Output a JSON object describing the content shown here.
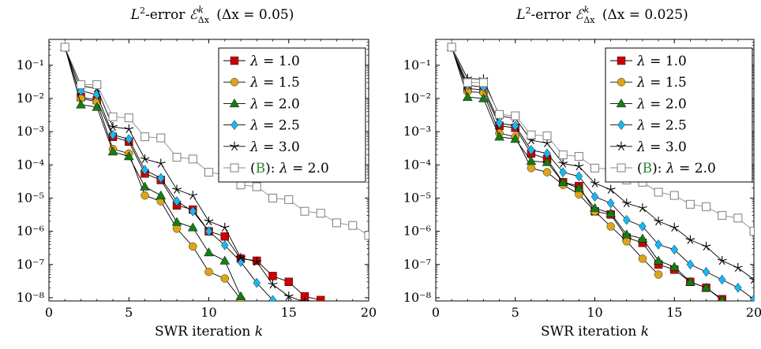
{
  "chart_data": [
    {
      "type": "line",
      "title": "L²-error 𝓔ᵏ_Δx (Δx = 0.05)",
      "xlabel": "SWR iteration k",
      "ylabel": "",
      "xlim": [
        0,
        20
      ],
      "ylim": [
        8e-09,
        0.6
      ],
      "yscale": "log",
      "grid": false,
      "legend_position": "top-right",
      "xticks": [
        "0",
        "5",
        "10",
        "15",
        "20"
      ],
      "yticks": [
        "10⁻⁸",
        "10⁻⁷",
        "10⁻⁶",
        "10⁻⁵",
        "10⁻⁴",
        "10⁻³",
        "10⁻²",
        "10⁻¹"
      ],
      "series": [
        {
          "name": "λ = 1.0",
          "color": "#cc0000",
          "marker": "square",
          "x": [
            1,
            2,
            3,
            4,
            5,
            6,
            7,
            8,
            9,
            10,
            11,
            12,
            13,
            14,
            15,
            16,
            17
          ],
          "y": [
            0.35,
            0.011,
            0.009,
            0.0007,
            0.0005,
            5.5e-05,
            3.5e-05,
            6e-06,
            4.5e-06,
            1e-06,
            7e-07,
            1.5e-07,
            1.3e-07,
            4.5e-08,
            3e-08,
            1.1e-08,
            8.5e-09
          ]
        },
        {
          "name": "λ = 1.5",
          "color": "#dca419",
          "marker": "circle",
          "x": [
            1,
            2,
            3,
            4,
            5,
            6,
            7,
            8,
            9,
            10,
            11,
            12
          ],
          "y": [
            0.35,
            0.01,
            0.008,
            0.0003,
            0.00022,
            1.2e-05,
            8e-06,
            1.2e-06,
            3.5e-07,
            6e-08,
            3.8e-08,
            9e-09
          ]
        },
        {
          "name": "λ = 2.0",
          "color": "#137d13",
          "marker": "triangle",
          "x": [
            1,
            2,
            3,
            4,
            5,
            6,
            7,
            8,
            9,
            10,
            11,
            12
          ],
          "y": [
            0.35,
            0.0065,
            0.0055,
            0.00025,
            0.00018,
            2.2e-05,
            1.2e-05,
            1.9e-06,
            1.3e-06,
            2.3e-07,
            1.3e-07,
            1.1e-08
          ]
        },
        {
          "name": "λ = 2.5",
          "color": "#15b8f0",
          "marker": "diamond",
          "x": [
            1,
            2,
            3,
            4,
            5,
            6,
            7,
            8,
            9,
            10,
            11,
            12,
            13,
            14
          ],
          "y": [
            0.35,
            0.017,
            0.013,
            0.0008,
            0.0006,
            7e-05,
            4e-05,
            8e-06,
            4e-06,
            1e-06,
            3.8e-07,
            1.2e-07,
            2.8e-08,
            8.5e-09
          ]
        },
        {
          "name": "λ = 3.0",
          "color": "#000000",
          "marker": "star",
          "x": [
            1,
            2,
            3,
            4,
            5,
            6,
            7,
            8,
            9,
            10,
            11,
            12,
            13,
            14,
            15,
            16
          ],
          "y": [
            0.35,
            0.024,
            0.02,
            0.0014,
            0.0012,
            0.00015,
            0.00011,
            1.8e-05,
            1.2e-05,
            2e-06,
            1.3e-06,
            1.6e-07,
            1.2e-07,
            2.5e-08,
            1.1e-08,
            7.5e-09
          ]
        },
        {
          "name_prefix": "(B)",
          "name": ": λ = 2.0",
          "color": "#888888",
          "marker": "open-square",
          "x": [
            1,
            2,
            3,
            4,
            5,
            6,
            7,
            8,
            9,
            10,
            11,
            12,
            13,
            14,
            15,
            16,
            17,
            18,
            19,
            20
          ],
          "y": [
            0.35,
            0.026,
            0.026,
            0.0028,
            0.0026,
            0.0007,
            0.00065,
            0.00017,
            0.00015,
            6e-05,
            5e-05,
            2.5e-05,
            2.2e-05,
            1e-05,
            9e-06,
            4e-06,
            3.5e-06,
            1.8e-06,
            1.5e-06,
            7.5e-07
          ]
        }
      ]
    },
    {
      "type": "line",
      "title": "L²-error 𝓔ᵏ_Δx (Δx = 0.025)",
      "xlabel": "SWR iteration k",
      "ylabel": "",
      "xlim": [
        0,
        20
      ],
      "ylim": [
        8e-09,
        0.6
      ],
      "yscale": "log",
      "grid": false,
      "legend_position": "top-right",
      "xticks": [
        "0",
        "5",
        "10",
        "15",
        "20"
      ],
      "yticks": [
        "10⁻⁸",
        "10⁻⁷",
        "10⁻⁶",
        "10⁻⁵",
        "10⁻⁴",
        "10⁻³",
        "10⁻²",
        "10⁻¹"
      ],
      "series": [
        {
          "name": "λ = 1.0",
          "color": "#cc0000",
          "marker": "square",
          "x": [
            1,
            2,
            3,
            4,
            5,
            6,
            7,
            8,
            9,
            10,
            11,
            12,
            13,
            14,
            15,
            16,
            17,
            18
          ],
          "y": [
            0.35,
            0.02,
            0.018,
            0.0015,
            0.0013,
            0.00022,
            0.00015,
            3e-05,
            2.3e-05,
            4e-06,
            3.2e-06,
            6.5e-07,
            4.5e-07,
            1e-07,
            7e-08,
            3e-08,
            2e-08,
            9e-09
          ]
        },
        {
          "name": "λ = 1.5",
          "color": "#dca419",
          "marker": "circle",
          "x": [
            1,
            2,
            3,
            4,
            5,
            6,
            7,
            8,
            9,
            10,
            11,
            12,
            13,
            14
          ],
          "y": [
            0.35,
            0.016,
            0.015,
            0.0009,
            0.0007,
            8e-05,
            6e-05,
            2.5e-05,
            1.3e-05,
            4e-06,
            1.4e-06,
            5e-07,
            1.5e-07,
            5e-08
          ]
        },
        {
          "name": "λ = 2.0",
          "color": "#137d13",
          "marker": "triangle",
          "x": [
            1,
            2,
            3,
            4,
            5,
            6,
            7,
            8,
            9,
            10,
            11,
            12,
            13,
            14,
            15,
            16,
            17,
            18,
            19,
            20
          ],
          "y": [
            0.35,
            0.011,
            0.01,
            0.0007,
            0.0006,
            0.00013,
            0.00012,
            3e-05,
            2e-05,
            5e-06,
            3.5e-06,
            8e-07,
            6e-07,
            1.3e-07,
            8.5e-08,
            3e-08,
            2e-08,
            8.5e-09,
            6e-09,
            4e-09
          ]
        },
        {
          "name": "λ = 2.5",
          "color": "#15b8f0",
          "marker": "diamond",
          "x": [
            1,
            2,
            3,
            4,
            5,
            6,
            7,
            8,
            9,
            10,
            11,
            12,
            13,
            14,
            15,
            16,
            17,
            18,
            19,
            20
          ],
          "y": [
            0.35,
            0.025,
            0.022,
            0.0018,
            0.0015,
            0.00028,
            0.00022,
            6e-05,
            4.5e-05,
            1.1e-05,
            7e-06,
            2.2e-06,
            1.4e-06,
            4e-07,
            2.8e-07,
            1e-07,
            6e-08,
            3.5e-08,
            2e-08,
            9e-09
          ]
        },
        {
          "name": "λ = 3.0",
          "color": "#000000",
          "marker": "star",
          "x": [
            1,
            2,
            3,
            4,
            5,
            6,
            7,
            8,
            9,
            10,
            11,
            12,
            13,
            14,
            15,
            16,
            17,
            18,
            19,
            20
          ],
          "y": [
            0.35,
            0.04,
            0.038,
            0.003,
            0.0025,
            0.00055,
            0.00045,
            0.00011,
            9e-05,
            2.8e-05,
            1.8e-05,
            7e-06,
            5e-06,
            2e-06,
            1.3e-06,
            5.5e-07,
            3.5e-07,
            1.3e-07,
            8e-08,
            3.5e-08
          ]
        },
        {
          "name_prefix": "(B)",
          "name": ": λ = 2.0",
          "color": "#888888",
          "marker": "open-square",
          "x": [
            1,
            2,
            3,
            4,
            5,
            6,
            7,
            8,
            9,
            10,
            11,
            12,
            13,
            14,
            15,
            16,
            17,
            18,
            19,
            20
          ],
          "y": [
            0.35,
            0.03,
            0.03,
            0.0033,
            0.003,
            0.0008,
            0.00075,
            0.0002,
            0.00018,
            8e-05,
            7.5e-05,
            3.5e-05,
            3e-05,
            1.5e-05,
            1.2e-05,
            6.5e-06,
            5.5e-06,
            3e-06,
            2.5e-06,
            1e-06
          ]
        }
      ]
    }
  ]
}
